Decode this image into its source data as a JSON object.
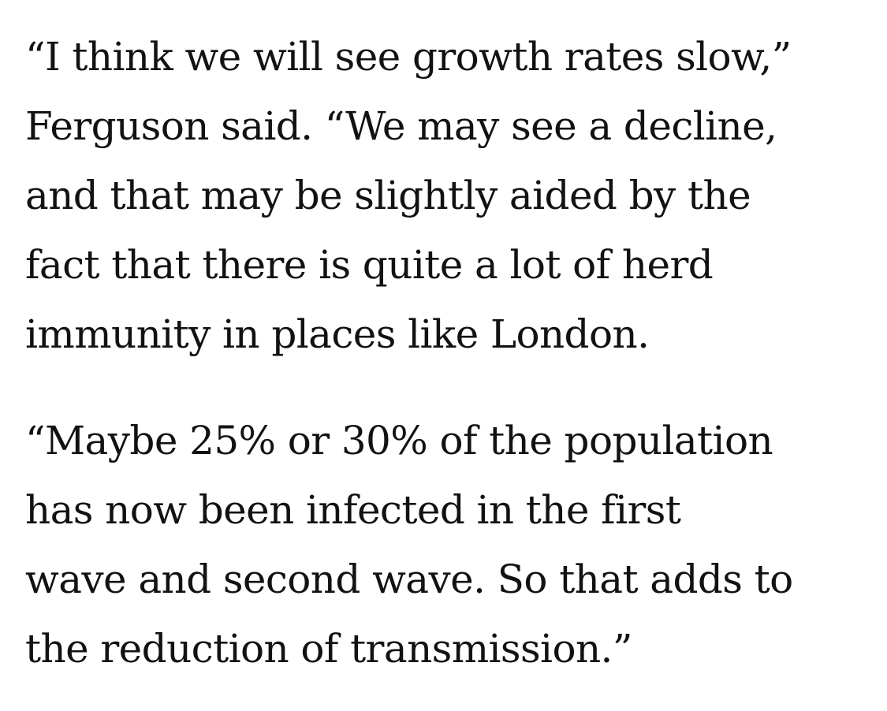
{
  "article": {
    "paragraphs": [
      {
        "lines": [
          "“I think we will see growth rates slow,”",
          "Ferguson said. “We may see a decline,",
          "and that may be slightly aided by the",
          "fact that there is quite a lot of herd",
          "immunity in places like London."
        ]
      },
      {
        "lines": [
          "“Maybe 25% or 30% of the population",
          "has now been infected in the first",
          "wave and second wave. So that adds to",
          "the reduction of transmission.”"
        ]
      }
    ]
  }
}
